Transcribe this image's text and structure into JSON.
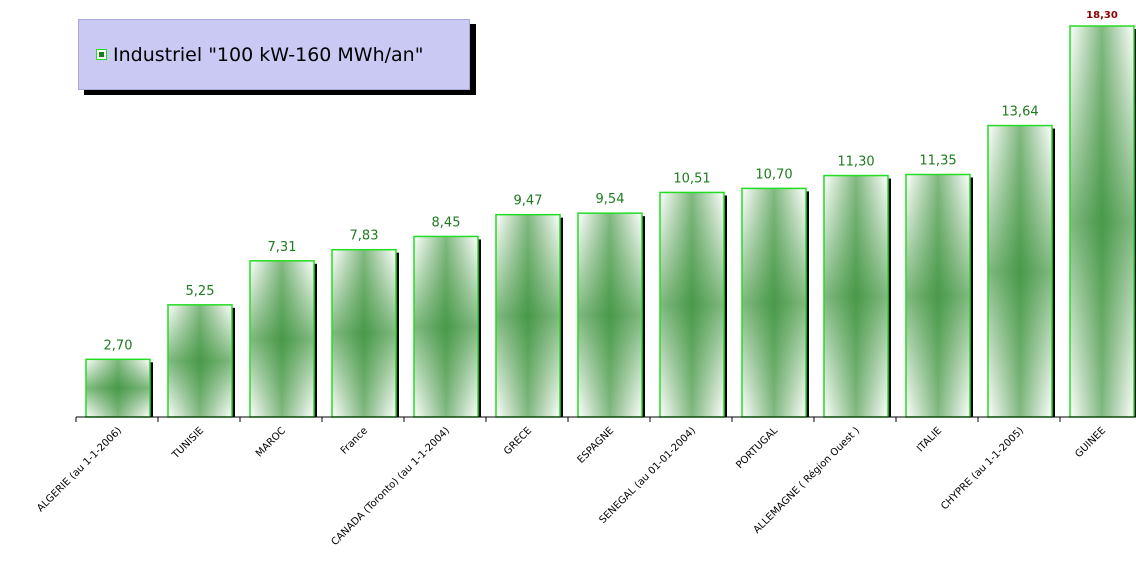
{
  "chart_data": {
    "type": "bar",
    "categories": [
      "ALGERIE (au 1-1-2006)",
      "TUNISIE",
      "MAROC",
      "France",
      "CANADA (Toronto) (au 1-1-2004)",
      "GRECE",
      "ESPAGNE",
      "SENEGAL (au 01-01-2004)",
      "PORTUGAL",
      "ALLEMAGNE ( Région Ouest )",
      "ITALIE",
      "CHYPRE (au 1-1-2005)",
      "GUINEE"
    ],
    "values": [
      2.7,
      5.25,
      7.31,
      7.83,
      8.45,
      9.47,
      9.54,
      10.51,
      10.7,
      11.3,
      11.35,
      13.64,
      18.3
    ],
    "data_labels": [
      "2,70",
      "5,25",
      "7,31",
      "7,83",
      "8,45",
      "9,47",
      "9,54",
      "10,51",
      "10,70",
      "11,30",
      "11,35",
      "13,64",
      "18,30"
    ],
    "series": [
      {
        "name": "Industriel \"100 kW-160 MWh/an\"",
        "values": [
          2.7,
          5.25,
          7.31,
          7.83,
          8.45,
          9.47,
          9.54,
          10.51,
          10.7,
          11.3,
          11.35,
          13.64,
          18.3
        ]
      }
    ],
    "ylim": [
      0,
      18.3
    ],
    "grid": false,
    "legend_position": "top-left",
    "colors": {
      "bar_border": "#22dd22",
      "bar_fill_center": "#1a7f1a",
      "bar_shadow": "#000000",
      "label_default": "#1e7b1e",
      "label_max": "#8b0000",
      "legend_bg": "#c9c9f4"
    }
  },
  "legend": {
    "label": "Industriel \"100 kW-160 MWh/an\""
  }
}
